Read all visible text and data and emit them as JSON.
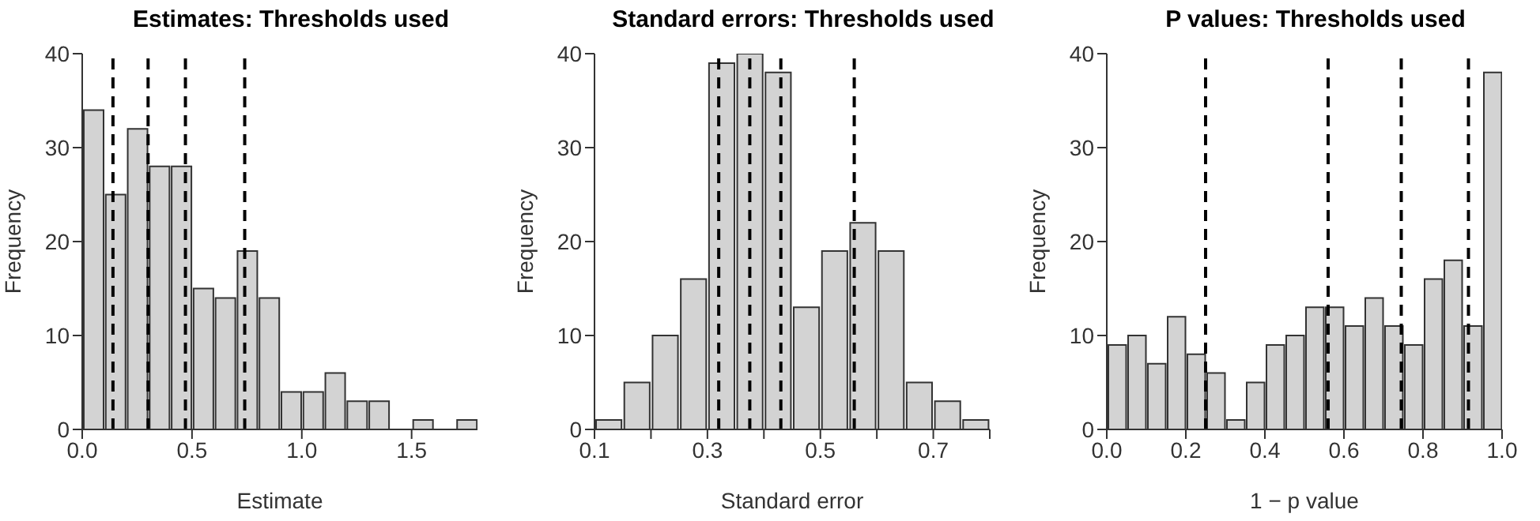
{
  "chart_data": [
    {
      "type": "histogram",
      "title": "Estimates: Thresholds used",
      "xlabel": "Estimate",
      "ylabel": "Frequency",
      "color": "#d3d3d3",
      "bins": [
        0,
        0.1,
        0.2,
        0.3,
        0.4,
        0.5,
        0.6,
        0.7,
        0.8,
        0.9,
        1.0,
        1.1,
        1.2,
        1.3,
        1.4,
        1.5,
        1.6,
        1.7,
        1.8
      ],
      "values": [
        34,
        25,
        32,
        28,
        28,
        15,
        14,
        19,
        14,
        4,
        4,
        6,
        3,
        3,
        0,
        1,
        0,
        1
      ],
      "xlim": [
        0,
        1.8
      ],
      "xticks": [
        {
          "value": 0,
          "label": "0.0"
        },
        0.5,
        {
          "value": 1,
          "label": "1.0"
        },
        1.5
      ],
      "ylim": [
        0,
        40
      ],
      "yticks": [
        0,
        10,
        20,
        30,
        40
      ],
      "grid": false,
      "ref_lines": [
        {
          "axis": "x",
          "value": 0.14,
          "color": "#000000",
          "line_style": "dashed"
        },
        {
          "axis": "x",
          "value": 0.3,
          "color": "#000000",
          "line_style": "dashed"
        },
        {
          "axis": "x",
          "value": 0.47,
          "color": "#000000",
          "line_style": "dashed"
        },
        {
          "axis": "x",
          "value": 0.74,
          "color": "#000000",
          "line_style": "dashed"
        }
      ]
    },
    {
      "type": "histogram",
      "title": "Standard errors: Thresholds used",
      "xlabel": "Standard error",
      "ylabel": "Frequency",
      "color": "#d3d3d3",
      "bins": [
        0.1,
        0.15,
        0.2,
        0.25,
        0.3,
        0.35,
        0.4,
        0.45,
        0.5,
        0.55,
        0.6,
        0.65,
        0.7,
        0.75,
        0.8
      ],
      "values": [
        1,
        5,
        10,
        16,
        39,
        40,
        38,
        13,
        19,
        22,
        19,
        5,
        3,
        1
      ],
      "xlim": [
        0.1,
        0.8
      ],
      "xticks": [
        0.1,
        {
          "value": 0.2,
          "label": null
        },
        0.3,
        {
          "value": 0.4,
          "label": null
        },
        0.5,
        {
          "value": 0.6,
          "label": null
        },
        0.7,
        {
          "value": 0.8,
          "label": null
        }
      ],
      "ylim": [
        0,
        40
      ],
      "yticks": [
        0,
        10,
        20,
        30,
        40
      ],
      "grid": false,
      "ref_lines": [
        {
          "axis": "x",
          "value": 0.32,
          "color": "#000000",
          "line_style": "dashed"
        },
        {
          "axis": "x",
          "value": 0.375,
          "color": "#000000",
          "line_style": "dashed"
        },
        {
          "axis": "x",
          "value": 0.43,
          "color": "#000000",
          "line_style": "dashed"
        },
        {
          "axis": "x",
          "value": 0.56,
          "color": "#000000",
          "line_style": "dashed"
        }
      ]
    },
    {
      "type": "histogram",
      "title": "P values: Thresholds used",
      "xlabel": "1 − p value",
      "ylabel": "Frequency",
      "color": "#d3d3d3",
      "bins": [
        0,
        0.05,
        0.1,
        0.15,
        0.2,
        0.25,
        0.3,
        0.35,
        0.4,
        0.45,
        0.5,
        0.55,
        0.6,
        0.65,
        0.7,
        0.75,
        0.8,
        0.85,
        0.9,
        0.95,
        1.0
      ],
      "values": [
        9,
        10,
        7,
        12,
        8,
        6,
        1,
        5,
        9,
        10,
        13,
        13,
        11,
        14,
        11,
        9,
        16,
        18,
        11,
        38
      ],
      "xlim": [
        0,
        1
      ],
      "xticks": [
        {
          "value": 0,
          "label": "0.0"
        },
        0.2,
        0.4,
        0.6,
        0.8,
        {
          "value": 1,
          "label": "1.0"
        }
      ],
      "ylim": [
        0,
        40
      ],
      "yticks": [
        0,
        10,
        20,
        30,
        40
      ],
      "grid": false,
      "ref_lines": [
        {
          "axis": "x",
          "value": 0.25,
          "color": "#000000",
          "line_style": "dashed"
        },
        {
          "axis": "x",
          "value": 0.56,
          "color": "#000000",
          "line_style": "dashed"
        },
        {
          "axis": "x",
          "value": 0.745,
          "color": "#000000",
          "line_style": "dashed"
        },
        {
          "axis": "x",
          "value": 0.915,
          "color": "#000000",
          "line_style": "dashed"
        }
      ]
    }
  ]
}
